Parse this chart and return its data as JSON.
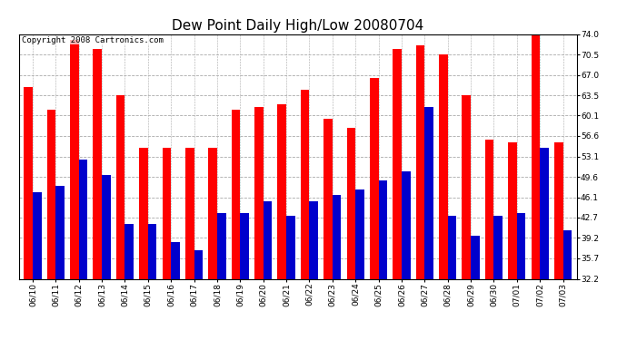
{
  "title": "Dew Point Daily High/Low 20080704",
  "copyright": "Copyright 2008 Cartronics.com",
  "dates": [
    "06/10",
    "06/11",
    "06/12",
    "06/13",
    "06/14",
    "06/15",
    "06/16",
    "06/17",
    "06/18",
    "06/19",
    "06/20",
    "06/21",
    "06/22",
    "06/23",
    "06/24",
    "06/25",
    "06/26",
    "06/27",
    "06/28",
    "06/29",
    "06/30",
    "07/01",
    "07/02",
    "07/03"
  ],
  "highs": [
    65.0,
    61.0,
    73.0,
    71.5,
    63.5,
    54.5,
    54.5,
    54.5,
    54.5,
    61.0,
    61.5,
    62.0,
    64.5,
    59.5,
    58.0,
    66.5,
    71.5,
    72.0,
    70.5,
    63.5,
    56.0,
    55.5,
    74.0,
    55.5
  ],
  "lows": [
    47.0,
    48.0,
    52.5,
    50.0,
    41.5,
    41.5,
    38.5,
    37.0,
    43.5,
    43.5,
    45.5,
    43.0,
    45.5,
    46.5,
    47.5,
    49.0,
    50.5,
    61.5,
    43.0,
    39.5,
    43.0,
    43.5,
    54.5,
    40.5
  ],
  "bar_width": 0.38,
  "high_color": "#ff0000",
  "low_color": "#0000cc",
  "background_color": "#ffffff",
  "grid_color": "#aaaaaa",
  "ylim": [
    32.2,
    74.0
  ],
  "yticks": [
    32.2,
    35.7,
    39.2,
    42.7,
    46.1,
    49.6,
    53.1,
    56.6,
    60.1,
    63.5,
    67.0,
    70.5,
    74.0
  ],
  "title_fontsize": 11,
  "tick_fontsize": 6.5,
  "copyright_fontsize": 6.5,
  "fig_width": 6.9,
  "fig_height": 3.75,
  "dpi": 100
}
